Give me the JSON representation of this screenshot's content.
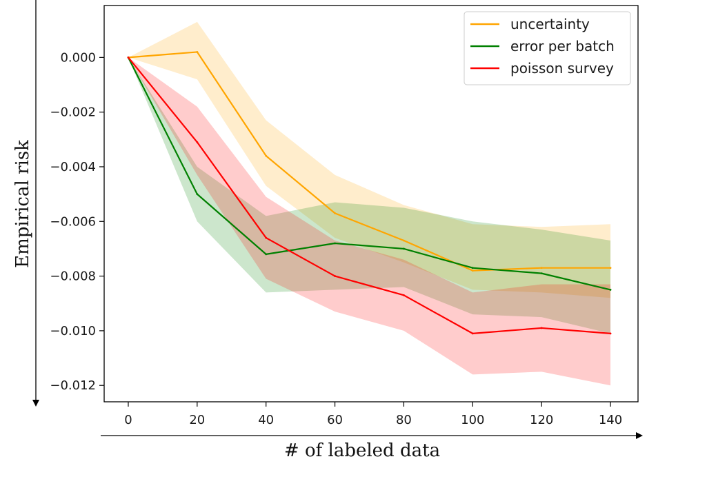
{
  "chart_data": {
    "type": "line",
    "title": "",
    "xlabel": "# of labeled data",
    "ylabel": "Empirical risk",
    "x": [
      0,
      20,
      40,
      60,
      80,
      100,
      120,
      140
    ],
    "xlim": [
      -7,
      148
    ],
    "ylim": [
      -0.0126,
      0.0019
    ],
    "xticks": [
      0,
      20,
      40,
      60,
      80,
      100,
      120,
      140
    ],
    "xtick_labels": [
      "0",
      "20",
      "40",
      "60",
      "80",
      "100",
      "120",
      "140"
    ],
    "yticks": [
      0.0,
      -0.002,
      -0.004,
      -0.006,
      -0.008,
      -0.01,
      -0.012
    ],
    "ytick_labels": [
      "0.000",
      "−0.002",
      "−0.004",
      "−0.006",
      "−0.008",
      "−0.010",
      "−0.012"
    ],
    "grid": false,
    "legend_position": "top-right",
    "series": [
      {
        "name": "uncertainty",
        "color": "#ffa500",
        "values": [
          0.0,
          0.0002,
          -0.0036,
          -0.0057,
          -0.0067,
          -0.0078,
          -0.0077,
          -0.0077
        ],
        "lower": [
          0.0,
          -0.0008,
          -0.0047,
          -0.0066,
          -0.0075,
          -0.0085,
          -0.0086,
          -0.0088
        ],
        "upper": [
          0.0,
          0.0013,
          -0.0023,
          -0.0043,
          -0.0054,
          -0.0061,
          -0.0062,
          -0.0061
        ]
      },
      {
        "name": "error per batch",
        "color": "#008000",
        "values": [
          0.0,
          -0.005,
          -0.0072,
          -0.0068,
          -0.007,
          -0.0077,
          -0.0079,
          -0.0085
        ],
        "lower": [
          0.0,
          -0.006,
          -0.0086,
          -0.0085,
          -0.0084,
          -0.0094,
          -0.0095,
          -0.0101
        ],
        "upper": [
          0.0,
          -0.004,
          -0.0058,
          -0.0053,
          -0.0055,
          -0.006,
          -0.0063,
          -0.0067
        ]
      },
      {
        "name": "poisson survey",
        "color": "#ff0000",
        "values": [
          0.0,
          -0.0031,
          -0.0066,
          -0.008,
          -0.0087,
          -0.0101,
          -0.0099,
          -0.0101
        ],
        "lower": [
          0.0,
          -0.0043,
          -0.0081,
          -0.0093,
          -0.01,
          -0.0116,
          -0.0115,
          -0.012
        ],
        "upper": [
          0.0,
          -0.0018,
          -0.0051,
          -0.0067,
          -0.0074,
          -0.0086,
          -0.0083,
          -0.0083
        ]
      }
    ]
  }
}
